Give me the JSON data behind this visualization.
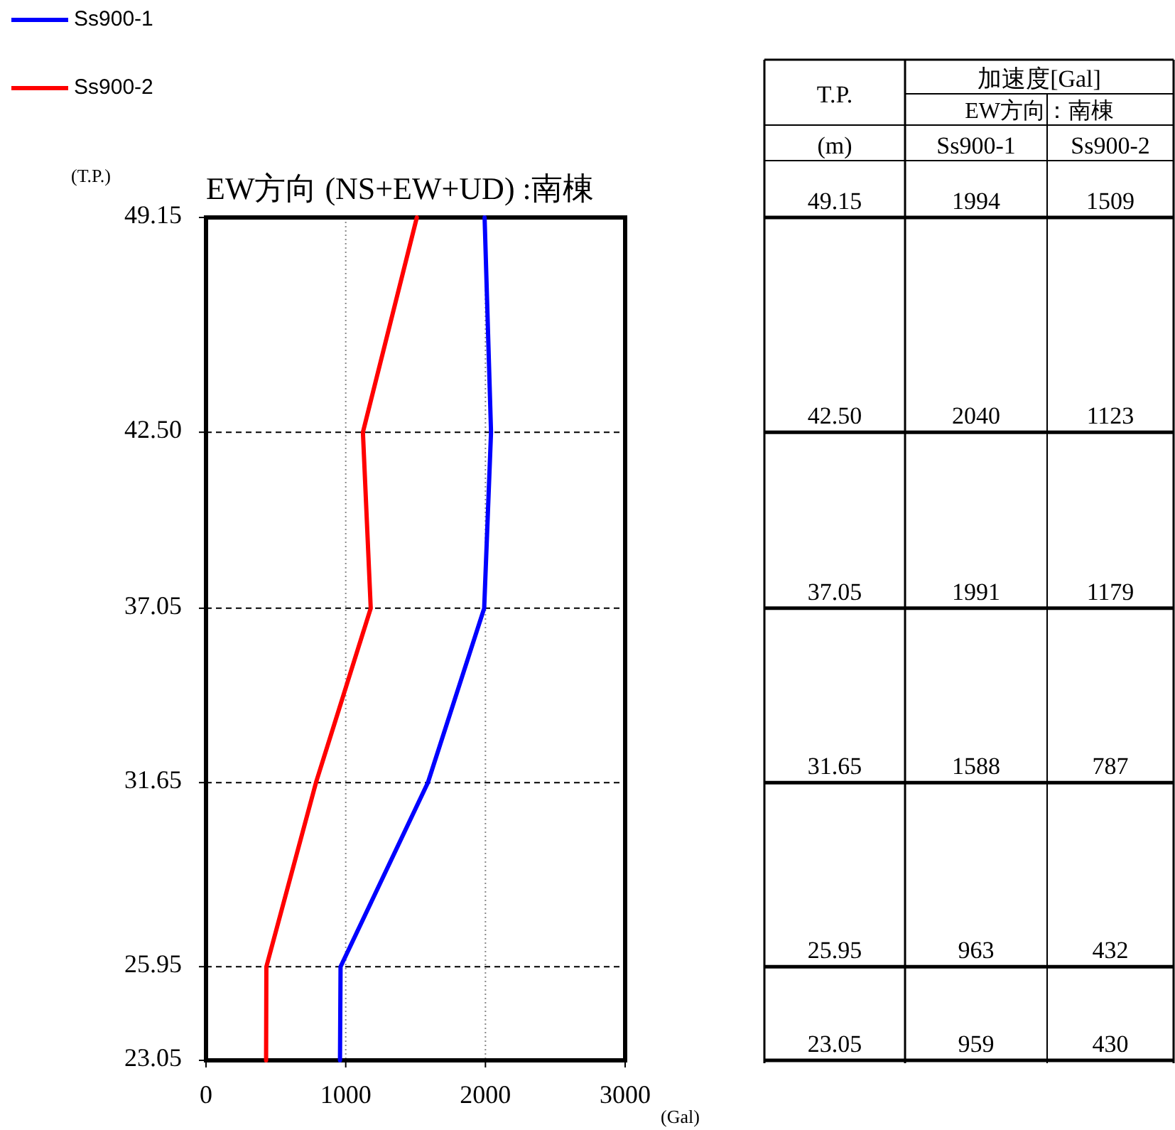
{
  "chart_data": [
    {
      "type": "line",
      "orientation": "horizontal",
      "title": "EW方向 (NS+EW+UD) :南棟",
      "xlabel": "(Gal)",
      "ylabel": "(T.P.)",
      "x": [
        49.15,
        42.5,
        37.05,
        31.65,
        25.95,
        23.05
      ],
      "series": [
        {
          "name": "Ss900-1",
          "color": "#0000ff",
          "values": [
            1994,
            2040,
            1991,
            1588,
            963,
            959
          ]
        },
        {
          "name": "Ss900-2",
          "color": "#ff0000",
          "values": [
            1509,
            1123,
            1179,
            787,
            432,
            430
          ]
        }
      ],
      "xlim": [
        0,
        3000
      ],
      "xticks": [
        0,
        1000,
        2000,
        3000
      ],
      "ylim": [
        23.05,
        49.15
      ],
      "yticks": [
        {
          "value": 49.15,
          "label": "49.15"
        },
        {
          "value": 42.5,
          "label": "42.50"
        },
        {
          "value": 37.05,
          "label": "37.05"
        },
        {
          "value": 31.65,
          "label": "31.65"
        },
        {
          "value": 25.95,
          "label": "25.95"
        },
        {
          "value": 23.05,
          "label": "23.05"
        }
      ],
      "grid": true,
      "legend": "top left",
      "line_style": "solid"
    },
    {
      "type": "other",
      "categories": [
        "49.15",
        "42.50",
        "37.05",
        "31.65",
        "25.95",
        "23.05"
      ],
      "series": [
        {
          "name": "Ss900-1",
          "values": [
            1994,
            2040,
            1991,
            1588,
            963,
            959
          ]
        },
        {
          "name": "Ss900-2",
          "values": [
            1509,
            1123,
            1179,
            787,
            432,
            430
          ]
        }
      ],
      "data_labels": true,
      "annotations": [
        "T.P.",
        "加速度[Gal]",
        "EW方向：南棟",
        "(m)"
      ]
    }
  ]
}
